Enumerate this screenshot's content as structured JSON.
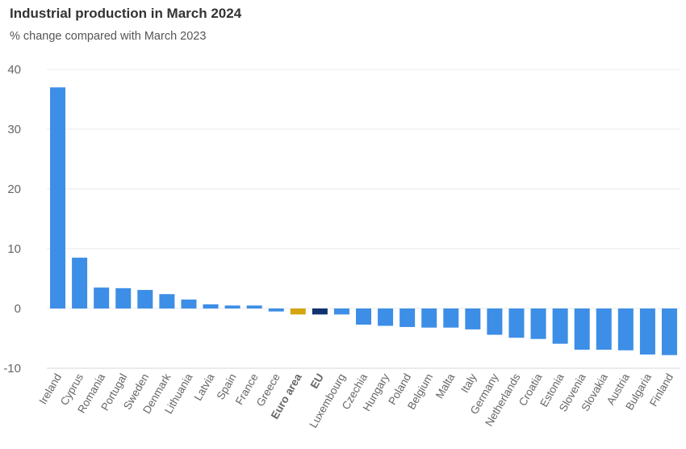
{
  "chart_data": {
    "type": "bar",
    "title": "Industrial production in March 2024",
    "subtitle": "% change compared with March 2023",
    "xlabel": "",
    "ylabel": "",
    "ylim": [
      -10,
      40
    ],
    "yticks": [
      40,
      30,
      20,
      10,
      0,
      -10
    ],
    "grid": true,
    "legend": "none",
    "colors": {
      "default": "#3d8ee6",
      "euro_area": "#d4a50f",
      "eu": "#10326f"
    },
    "categories": [
      "Ireland",
      "Cyprus",
      "Romania",
      "Portugal",
      "Sweden",
      "Denmark",
      "Lithuania",
      "Latvia",
      "Spain",
      "France",
      "Greece",
      "Euro area",
      "EU",
      "Luxembourg",
      "Czechia",
      "Hungary",
      "Poland",
      "Belgium",
      "Malta",
      "Italy",
      "Germany",
      "Netherlands",
      "Croatia",
      "Estonia",
      "Slovenia",
      "Slovakia",
      "Austria",
      "Bulgaria",
      "Finland"
    ],
    "highlight": [
      "Euro area",
      "EU"
    ],
    "values": [
      37.0,
      8.5,
      3.5,
      3.4,
      3.1,
      2.4,
      1.5,
      0.7,
      0.5,
      0.5,
      -0.5,
      -1.0,
      -1.0,
      -1.0,
      -2.7,
      -2.9,
      -3.1,
      -3.2,
      -3.2,
      -3.5,
      -4.4,
      -4.9,
      -5.1,
      -5.9,
      -6.9,
      -6.9,
      -7.0,
      -7.7,
      -7.8
    ]
  }
}
